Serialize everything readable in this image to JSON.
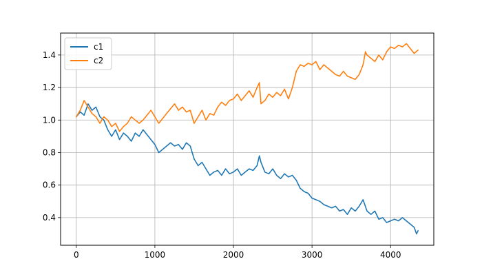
{
  "chart_data": {
    "type": "line",
    "title": "",
    "xlabel": "",
    "ylabel": "",
    "xlim": [
      -200,
      4550
    ],
    "ylim": [
      0.23,
      1.535
    ],
    "xticks": [
      0,
      1000,
      2000,
      3000,
      4000
    ],
    "yticks": [
      0.4,
      0.6,
      0.8,
      1.0,
      1.2,
      1.4
    ],
    "xtick_labels": [
      "0",
      "1000",
      "2000",
      "3000",
      "4000"
    ],
    "ytick_labels": [
      "0.4",
      "0.6",
      "0.8",
      "1.0",
      "1.2",
      "1.4"
    ],
    "grid": true,
    "legend_position": "top-left",
    "series": [
      {
        "name": "c1",
        "color": "#1f77b4",
        "x": [
          0,
          50,
          100,
          150,
          200,
          250,
          300,
          350,
          400,
          450,
          500,
          550,
          600,
          650,
          700,
          750,
          800,
          850,
          900,
          950,
          1000,
          1050,
          1100,
          1150,
          1200,
          1250,
          1300,
          1350,
          1400,
          1450,
          1500,
          1550,
          1600,
          1650,
          1700,
          1750,
          1800,
          1850,
          1900,
          1950,
          2000,
          2050,
          2100,
          2150,
          2200,
          2250,
          2300,
          2330,
          2350,
          2400,
          2450,
          2500,
          2550,
          2600,
          2650,
          2700,
          2750,
          2800,
          2850,
          2900,
          2950,
          3000,
          3050,
          3100,
          3150,
          3200,
          3250,
          3300,
          3350,
          3400,
          3450,
          3500,
          3550,
          3600,
          3650,
          3700,
          3750,
          3800,
          3850,
          3900,
          3950,
          4000,
          4050,
          4100,
          4150,
          4200,
          4250,
          4300,
          4330,
          4350
        ],
        "y": [
          1.02,
          1.05,
          1.03,
          1.1,
          1.06,
          1.08,
          1.02,
          1.0,
          0.94,
          0.9,
          0.94,
          0.88,
          0.92,
          0.9,
          0.87,
          0.92,
          0.9,
          0.94,
          0.91,
          0.88,
          0.85,
          0.8,
          0.82,
          0.84,
          0.86,
          0.84,
          0.85,
          0.82,
          0.86,
          0.84,
          0.76,
          0.72,
          0.74,
          0.7,
          0.66,
          0.68,
          0.69,
          0.66,
          0.7,
          0.67,
          0.68,
          0.7,
          0.66,
          0.68,
          0.7,
          0.69,
          0.72,
          0.78,
          0.74,
          0.68,
          0.67,
          0.7,
          0.66,
          0.64,
          0.67,
          0.65,
          0.66,
          0.63,
          0.58,
          0.56,
          0.55,
          0.52,
          0.51,
          0.5,
          0.48,
          0.47,
          0.46,
          0.47,
          0.44,
          0.45,
          0.42,
          0.46,
          0.44,
          0.47,
          0.51,
          0.44,
          0.42,
          0.44,
          0.39,
          0.4,
          0.37,
          0.38,
          0.39,
          0.38,
          0.4,
          0.38,
          0.36,
          0.34,
          0.3,
          0.32
        ]
      },
      {
        "name": "c2",
        "color": "#ff7f0e",
        "x": [
          0,
          50,
          100,
          150,
          200,
          250,
          300,
          350,
          400,
          450,
          500,
          550,
          600,
          650,
          700,
          750,
          800,
          850,
          900,
          950,
          1000,
          1050,
          1100,
          1150,
          1200,
          1250,
          1300,
          1350,
          1400,
          1450,
          1500,
          1550,
          1600,
          1650,
          1700,
          1750,
          1800,
          1850,
          1900,
          1950,
          2000,
          2050,
          2100,
          2150,
          2200,
          2250,
          2300,
          2330,
          2350,
          2400,
          2450,
          2500,
          2550,
          2600,
          2650,
          2700,
          2750,
          2800,
          2850,
          2900,
          2950,
          3000,
          3050,
          3100,
          3150,
          3200,
          3250,
          3300,
          3350,
          3400,
          3450,
          3500,
          3550,
          3600,
          3650,
          3680,
          3700,
          3750,
          3800,
          3850,
          3900,
          3950,
          4000,
          4050,
          4100,
          4150,
          4200,
          4250,
          4300,
          4350
        ],
        "y": [
          1.02,
          1.06,
          1.12,
          1.08,
          1.04,
          1.02,
          0.98,
          1.02,
          1.0,
          0.96,
          0.98,
          0.93,
          0.96,
          0.98,
          1.02,
          1.0,
          0.98,
          1.0,
          1.03,
          1.06,
          1.02,
          0.98,
          1.01,
          1.04,
          1.07,
          1.1,
          1.06,
          1.08,
          1.05,
          1.06,
          0.98,
          1.02,
          1.06,
          1.0,
          1.04,
          1.03,
          1.08,
          1.11,
          1.09,
          1.12,
          1.13,
          1.16,
          1.12,
          1.15,
          1.18,
          1.14,
          1.2,
          1.23,
          1.1,
          1.12,
          1.16,
          1.14,
          1.17,
          1.15,
          1.19,
          1.13,
          1.2,
          1.3,
          1.34,
          1.33,
          1.35,
          1.34,
          1.36,
          1.31,
          1.34,
          1.32,
          1.3,
          1.28,
          1.27,
          1.3,
          1.27,
          1.26,
          1.25,
          1.28,
          1.34,
          1.42,
          1.4,
          1.38,
          1.36,
          1.4,
          1.37,
          1.42,
          1.45,
          1.44,
          1.46,
          1.45,
          1.47,
          1.44,
          1.41,
          1.43
        ]
      }
    ]
  }
}
